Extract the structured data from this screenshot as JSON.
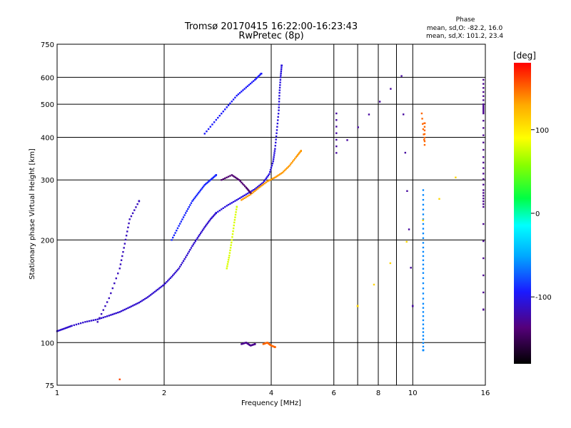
{
  "chart_data": {
    "type": "scatter",
    "title": "Tromsø 20170415 16:22:00-16:23:43",
    "subtitle": "RwPretec (8p)",
    "xlabel": "Frequency [MHz]",
    "ylabel": "Stationary phase Virtual Height [km]",
    "x_scale": "log",
    "y_scale": "log",
    "xlim": [
      1,
      16
    ],
    "ylim": [
      75,
      750
    ],
    "x_ticks": [
      1,
      2,
      4,
      6,
      8,
      10,
      16
    ],
    "x_grid": [
      1,
      2,
      4,
      6,
      7,
      8,
      9,
      10,
      16
    ],
    "y_ticks": [
      75,
      100,
      200,
      300,
      400,
      500,
      600,
      750
    ],
    "grid": true,
    "stats": {
      "title": "Phase",
      "line_o": "mean, sd,O: -82.2, 16.0",
      "line_x": "mean, sd,X: 101.2, 23.4"
    },
    "colorbar": {
      "label": "[deg]",
      "range": [
        -180,
        180
      ],
      "ticks": [
        100,
        0,
        -100
      ]
    },
    "traces": [
      {
        "phase": -110,
        "points": [
          [
            1.0,
            108
          ],
          [
            1.05,
            110
          ],
          [
            1.1,
            112
          ],
          [
            1.2,
            115
          ],
          [
            1.3,
            117
          ],
          [
            1.4,
            120
          ],
          [
            1.5,
            123
          ],
          [
            1.6,
            127
          ],
          [
            1.7,
            131
          ],
          [
            1.8,
            136
          ],
          [
            1.9,
            142
          ],
          [
            2.0,
            148
          ],
          [
            2.1,
            156
          ],
          [
            2.2,
            165
          ],
          [
            2.3,
            178
          ],
          [
            2.4,
            192
          ],
          [
            2.5,
            205
          ],
          [
            2.6,
            218
          ],
          [
            2.7,
            230
          ],
          [
            2.8,
            240
          ]
        ]
      },
      {
        "phase": -105,
        "points": [
          [
            2.8,
            240
          ],
          [
            3.0,
            252
          ],
          [
            3.2,
            262
          ],
          [
            3.4,
            272
          ],
          [
            3.6,
            282
          ],
          [
            3.8,
            295
          ],
          [
            3.95,
            312
          ],
          [
            4.05,
            340
          ],
          [
            4.1,
            370
          ],
          [
            4.15,
            420
          ],
          [
            4.2,
            480
          ],
          [
            4.22,
            540
          ],
          [
            4.25,
            600
          ],
          [
            4.28,
            650
          ]
        ]
      },
      {
        "phase": 135,
        "points": [
          [
            3.3,
            262
          ],
          [
            3.5,
            272
          ],
          [
            3.7,
            285
          ],
          [
            3.9,
            297
          ],
          [
            4.1,
            305
          ],
          [
            4.3,
            315
          ],
          [
            4.5,
            330
          ],
          [
            4.7,
            350
          ],
          [
            4.85,
            365
          ]
        ]
      },
      {
        "phase": -95,
        "points": [
          [
            2.6,
            410
          ],
          [
            2.8,
            450
          ],
          [
            3.0,
            490
          ],
          [
            3.2,
            530
          ],
          [
            3.4,
            560
          ],
          [
            3.6,
            590
          ],
          [
            3.75,
            615
          ]
        ]
      },
      {
        "phase": -90,
        "points": [
          [
            2.1,
            200
          ],
          [
            2.2,
            220
          ],
          [
            2.3,
            240
          ],
          [
            2.4,
            260
          ],
          [
            2.5,
            275
          ],
          [
            2.6,
            290
          ],
          [
            2.7,
            300
          ],
          [
            2.8,
            310
          ]
        ]
      },
      {
        "phase": -140,
        "points": [
          [
            2.9,
            300
          ],
          [
            3.1,
            310
          ],
          [
            3.25,
            300
          ],
          [
            3.4,
            285
          ],
          [
            3.5,
            275
          ]
        ]
      },
      {
        "phase": -115,
        "points": [
          [
            1.3,
            115
          ],
          [
            1.4,
            135
          ],
          [
            1.5,
            165
          ],
          [
            1.55,
            195
          ],
          [
            1.6,
            230
          ],
          [
            1.7,
            260
          ]
        ]
      },
      {
        "phase": 80,
        "points": [
          [
            3.0,
            165
          ],
          [
            3.05,
            180
          ],
          [
            3.1,
            200
          ],
          [
            3.15,
            225
          ],
          [
            3.2,
            250
          ]
        ]
      },
      {
        "phase": -130,
        "points": [
          [
            3.3,
            99
          ],
          [
            3.4,
            100
          ],
          [
            3.5,
            98
          ],
          [
            3.6,
            99
          ]
        ]
      },
      {
        "phase": 150,
        "points": [
          [
            3.8,
            99
          ],
          [
            3.9,
            100
          ],
          [
            4.0,
            98
          ],
          [
            4.1,
            97
          ]
        ]
      },
      {
        "phase": 150,
        "points": [
          [
            10.6,
            470
          ],
          [
            10.8,
            380
          ],
          [
            10.8,
            440
          ]
        ]
      },
      {
        "phase": -60,
        "points": [
          [
            10.7,
            280
          ],
          [
            10.7,
            230
          ],
          [
            10.7,
            190
          ],
          [
            10.7,
            160
          ],
          [
            10.7,
            130
          ],
          [
            10.7,
            110
          ],
          [
            10.7,
            95
          ]
        ]
      },
      {
        "phase": -130,
        "points": [
          [
            15.8,
            590
          ],
          [
            15.8,
            500
          ],
          [
            15.8,
            470
          ],
          [
            15.8,
            350
          ],
          [
            15.8,
            280
          ],
          [
            15.8,
            250
          ],
          [
            15.8,
            125
          ]
        ]
      },
      {
        "phase": -125,
        "points": [
          [
            6.1,
            470
          ],
          [
            6.1,
            360
          ],
          [
            9.3,
            605
          ],
          [
            10.0,
            128
          ]
        ]
      },
      {
        "phase": 160,
        "points": [
          [
            1.5,
            78
          ]
        ]
      },
      {
        "phase": 110,
        "points": [
          [
            13.2,
            305
          ],
          [
            7.0,
            128
          ]
        ]
      }
    ]
  }
}
